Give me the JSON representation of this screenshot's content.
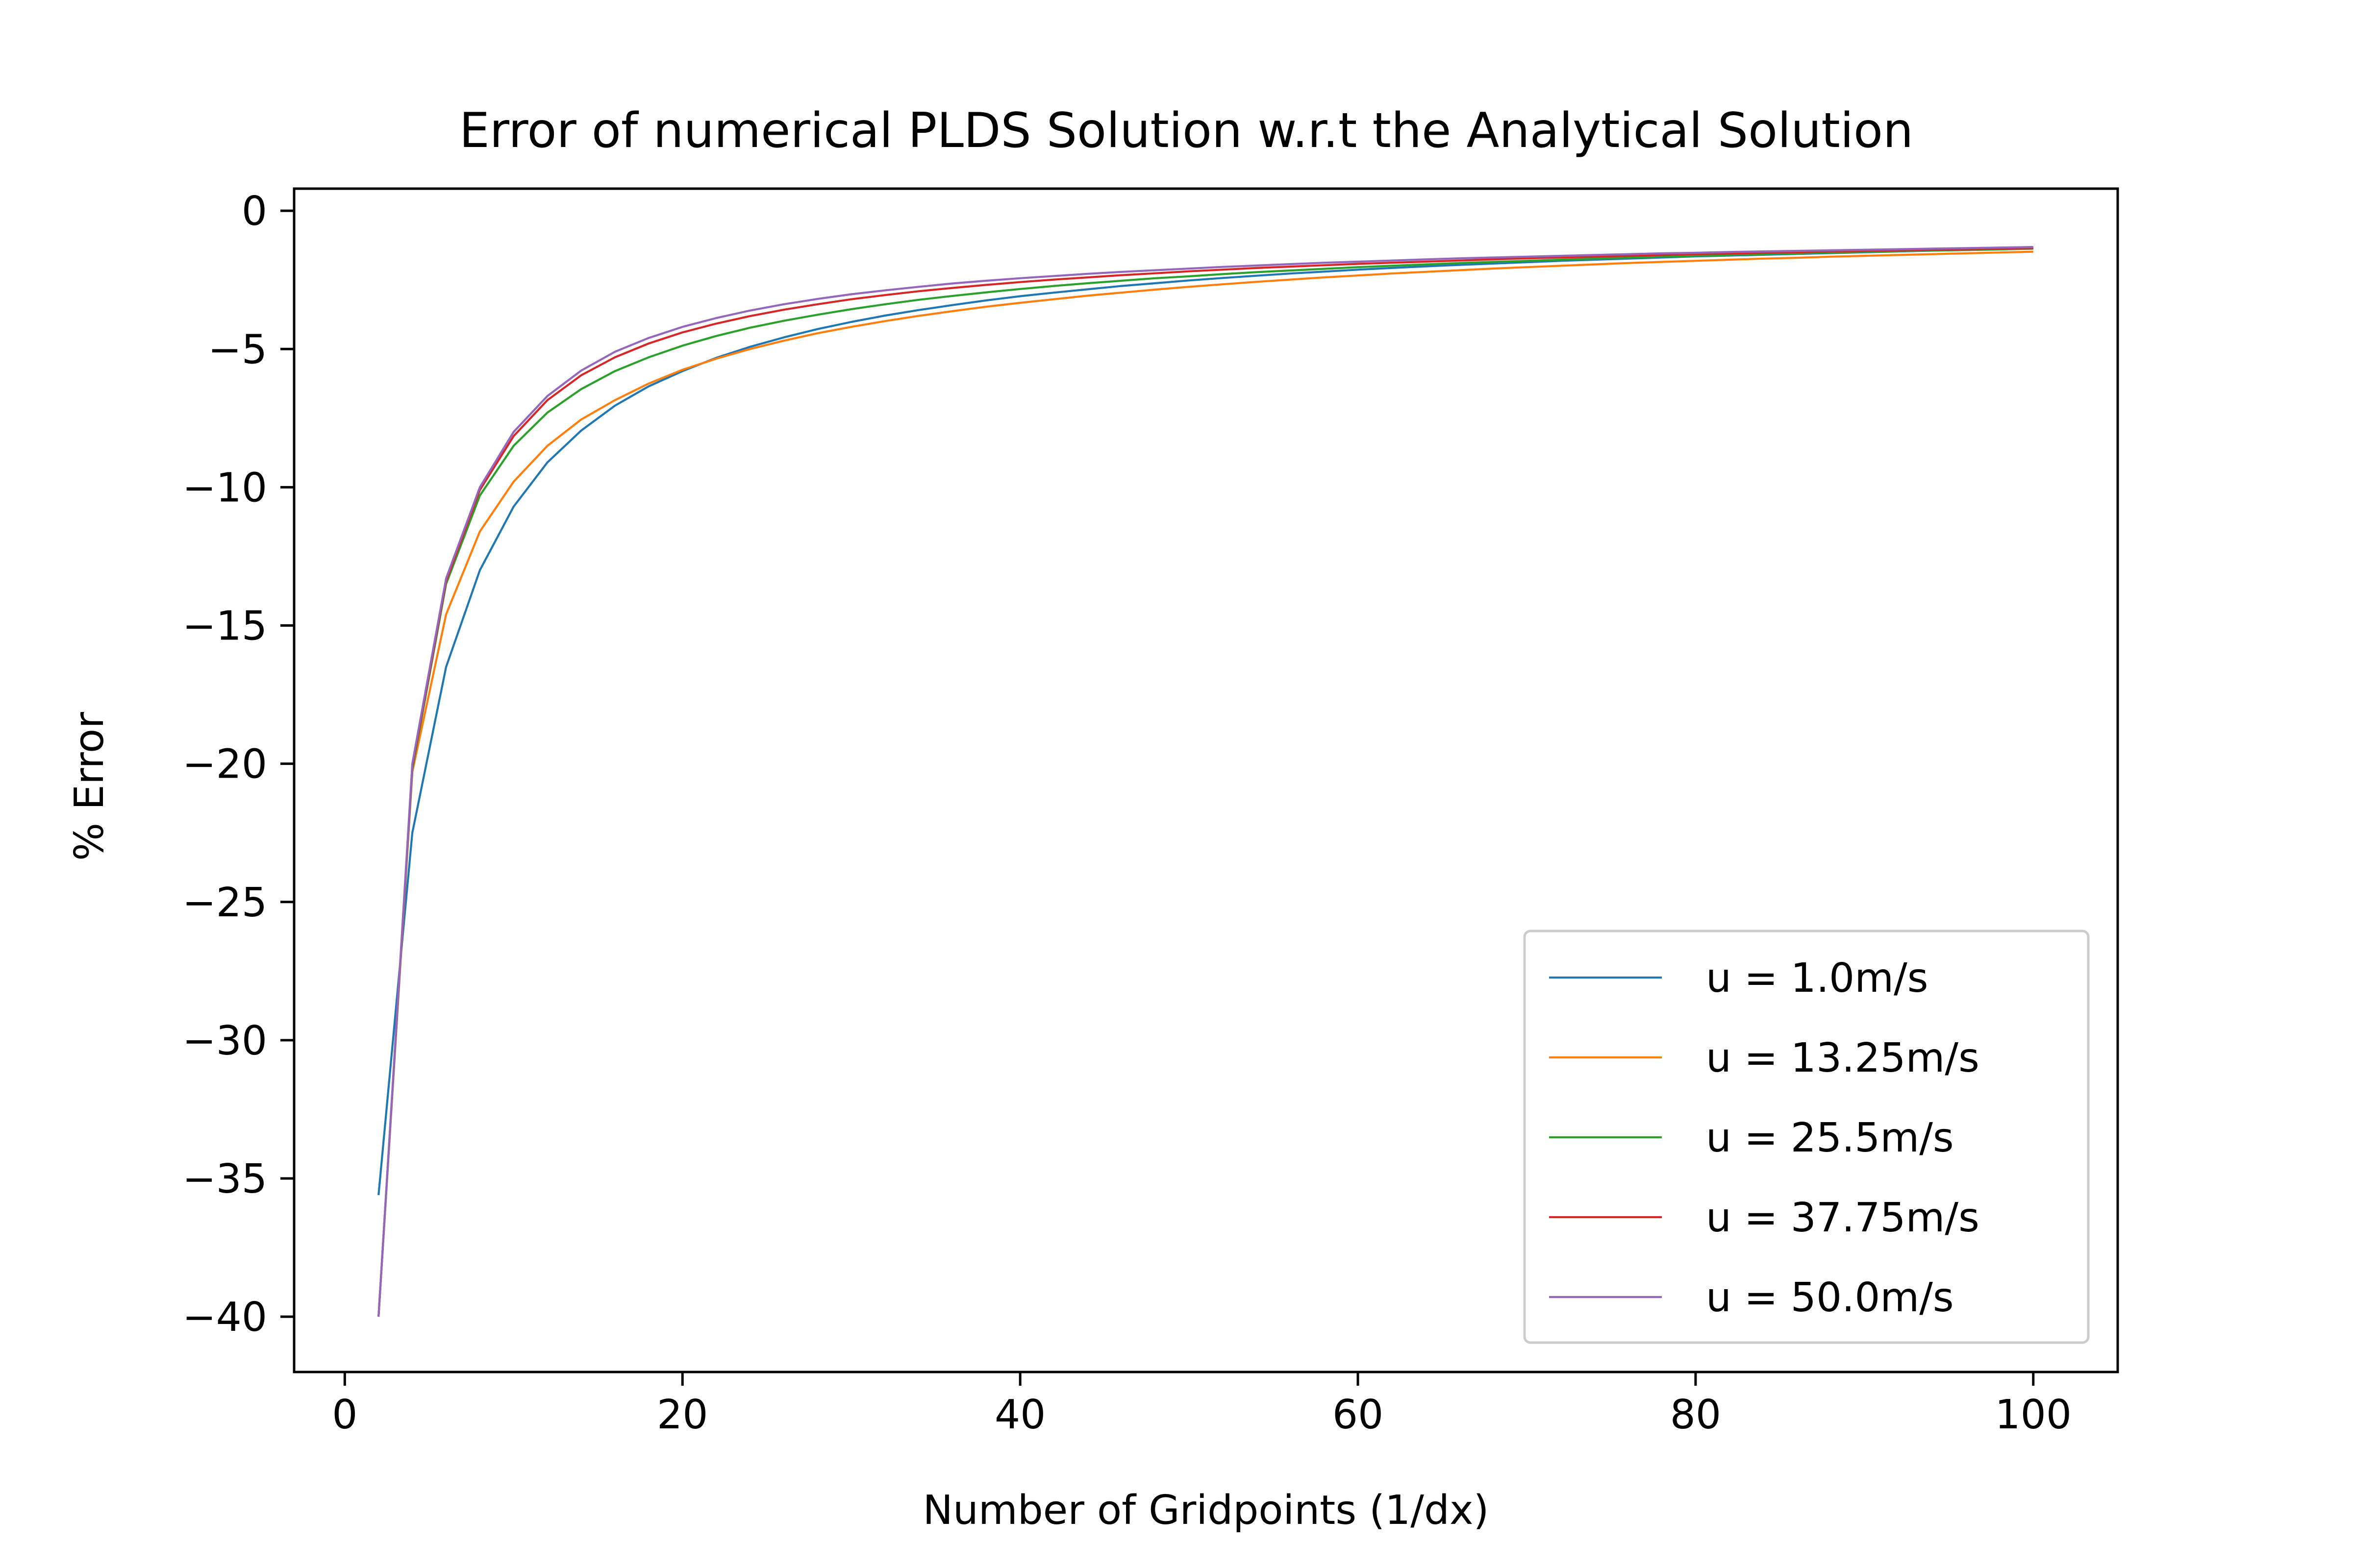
{
  "chart_data": {
    "type": "line",
    "title": "Error of numerical PLDS Solution w.r.t the Analytical Solution",
    "xlabel": "Number of Gridpoints (1/dx)",
    "ylabel": "% Error",
    "xlim": [
      -3,
      105
    ],
    "ylim": [
      -42,
      0.8
    ],
    "xticks": [
      0,
      20,
      40,
      60,
      80,
      100
    ],
    "xtick_labels": [
      "0",
      "20",
      "40",
      "60",
      "80",
      "100"
    ],
    "yticks": [
      0,
      -5,
      -10,
      -15,
      -20,
      -25,
      -30,
      -35,
      -40
    ],
    "ytick_labels": [
      "0",
      "−5",
      "−10",
      "−15",
      "−20",
      "−25",
      "−30",
      "−35",
      "−40"
    ],
    "grid": false,
    "legend_position": "lower-right",
    "x": [
      2,
      4,
      6,
      8,
      10,
      12,
      14,
      16,
      18,
      20,
      22,
      24,
      26,
      28,
      30,
      32,
      34,
      36,
      38,
      40,
      42,
      44,
      46,
      48,
      50,
      52,
      54,
      56,
      58,
      60,
      62,
      64,
      66,
      68,
      70,
      72,
      74,
      76,
      78,
      80,
      82,
      84,
      86,
      88,
      90,
      92,
      94,
      96,
      98,
      100
    ],
    "series": [
      {
        "name": "u = 1.0m/s",
        "color": "#1f77b4",
        "values": [
          -35.6,
          -22.5,
          -16.5,
          -13.0,
          -10.7,
          -9.1,
          -7.95,
          -7.05,
          -6.35,
          -5.8,
          -5.32,
          -4.92,
          -4.58,
          -4.28,
          -4.02,
          -3.79,
          -3.59,
          -3.41,
          -3.24,
          -3.09,
          -2.96,
          -2.84,
          -2.72,
          -2.62,
          -2.52,
          -2.43,
          -2.35,
          -2.27,
          -2.2,
          -2.13,
          -2.07,
          -2.01,
          -1.96,
          -1.91,
          -1.86,
          -1.81,
          -1.77,
          -1.73,
          -1.69,
          -1.65,
          -1.62,
          -1.59,
          -1.56,
          -1.53,
          -1.5,
          -1.47,
          -1.44,
          -1.42,
          -1.39,
          -1.37
        ]
      },
      {
        "name": "u = 13.25m/s",
        "color": "#ff7f0e",
        "values": [
          -40.0,
          -20.3,
          -14.6,
          -11.6,
          -9.8,
          -8.5,
          -7.55,
          -6.85,
          -6.25,
          -5.75,
          -5.35,
          -5.0,
          -4.7,
          -4.43,
          -4.2,
          -3.99,
          -3.8,
          -3.63,
          -3.47,
          -3.33,
          -3.2,
          -3.07,
          -2.96,
          -2.85,
          -2.75,
          -2.66,
          -2.57,
          -2.49,
          -2.41,
          -2.34,
          -2.27,
          -2.21,
          -2.15,
          -2.09,
          -2.04,
          -1.99,
          -1.94,
          -1.89,
          -1.85,
          -1.81,
          -1.77,
          -1.73,
          -1.7,
          -1.66,
          -1.63,
          -1.6,
          -1.57,
          -1.54,
          -1.51,
          -1.48
        ]
      },
      {
        "name": "u = 25.5m/s",
        "color": "#2ca02c",
        "values": [
          -40.0,
          -20.2,
          -13.5,
          -10.3,
          -8.5,
          -7.3,
          -6.45,
          -5.8,
          -5.3,
          -4.88,
          -4.53,
          -4.23,
          -3.98,
          -3.76,
          -3.56,
          -3.38,
          -3.22,
          -3.08,
          -2.95,
          -2.83,
          -2.72,
          -2.62,
          -2.53,
          -2.44,
          -2.37,
          -2.29,
          -2.22,
          -2.16,
          -2.1,
          -2.04,
          -1.99,
          -1.94,
          -1.89,
          -1.85,
          -1.81,
          -1.77,
          -1.73,
          -1.69,
          -1.66,
          -1.63,
          -1.6,
          -1.57,
          -1.54,
          -1.51,
          -1.49,
          -1.46,
          -1.44,
          -1.42,
          -1.4,
          -1.37
        ]
      },
      {
        "name": "u = 37.75m/s",
        "color": "#d62728",
        "values": [
          -40.0,
          -20.1,
          -13.4,
          -10.1,
          -8.15,
          -6.85,
          -5.95,
          -5.3,
          -4.8,
          -4.4,
          -4.08,
          -3.81,
          -3.58,
          -3.38,
          -3.2,
          -3.05,
          -2.91,
          -2.79,
          -2.68,
          -2.58,
          -2.49,
          -2.41,
          -2.33,
          -2.26,
          -2.19,
          -2.13,
          -2.07,
          -2.02,
          -1.97,
          -1.92,
          -1.88,
          -1.84,
          -1.8,
          -1.76,
          -1.72,
          -1.69,
          -1.66,
          -1.63,
          -1.6,
          -1.57,
          -1.55,
          -1.52,
          -1.5,
          -1.47,
          -1.45,
          -1.43,
          -1.41,
          -1.39,
          -1.37,
          -1.35
        ]
      },
      {
        "name": "u = 50.0m/s",
        "color": "#9467bd",
        "values": [
          -40.0,
          -20.0,
          -13.3,
          -10.0,
          -8.0,
          -6.7,
          -5.78,
          -5.1,
          -4.6,
          -4.2,
          -3.88,
          -3.61,
          -3.38,
          -3.19,
          -3.02,
          -2.88,
          -2.75,
          -2.63,
          -2.53,
          -2.44,
          -2.36,
          -2.28,
          -2.21,
          -2.15,
          -2.09,
          -2.03,
          -1.98,
          -1.93,
          -1.88,
          -1.84,
          -1.8,
          -1.76,
          -1.72,
          -1.69,
          -1.66,
          -1.63,
          -1.6,
          -1.57,
          -1.54,
          -1.52,
          -1.49,
          -1.47,
          -1.45,
          -1.43,
          -1.41,
          -1.39,
          -1.37,
          -1.35,
          -1.33,
          -1.31
        ]
      }
    ]
  }
}
